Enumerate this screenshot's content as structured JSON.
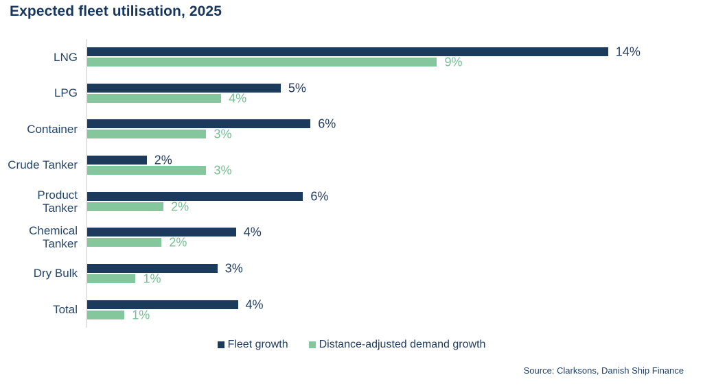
{
  "title": "Expected fleet utilisation, 2025",
  "source": "Source: Clarksons, Danish Ship Finance",
  "colors": {
    "navy": "#1B3A5C",
    "green": "#85C79D",
    "navy_text": "#1F3A5F",
    "green_text": "#74BF92",
    "axis_line": "#E3E3E3",
    "title_text": "#17365D"
  },
  "legend": [
    {
      "label": "Fleet growth",
      "color": "#1B3A5C"
    },
    {
      "label": "Distance-adjusted demand growth",
      "color": "#85C79D"
    }
  ],
  "chart_data": {
    "type": "bar",
    "orientation": "horizontal",
    "title": "Expected fleet utilisation, 2025",
    "categories": [
      "LNG",
      "LPG",
      "Container",
      "Crude Tanker",
      "Product Tanker",
      "Chemical Tanker",
      "Dry Bulk",
      "Total"
    ],
    "category_lines": [
      [
        "LNG"
      ],
      [
        "LPG"
      ],
      [
        "Container"
      ],
      [
        "Crude Tanker"
      ],
      [
        "Product",
        "Tanker"
      ],
      [
        "Chemical",
        "Tanker"
      ],
      [
        "Dry Bulk"
      ],
      [
        "Total"
      ]
    ],
    "series": [
      {
        "name": "Fleet growth",
        "color": "#1B3A5C",
        "values": [
          14,
          5,
          6,
          2,
          6,
          4,
          3,
          4
        ],
        "labels": [
          "14%",
          "5%",
          "6%",
          "2%",
          "6%",
          "4%",
          "3%",
          "4%"
        ]
      },
      {
        "name": "Distance-adjusted demand growth",
        "color": "#85C79D",
        "values": [
          9,
          4,
          3,
          3,
          2,
          2,
          1,
          1
        ],
        "labels": [
          "9%",
          "4%",
          "3%",
          "3%",
          "2%",
          "2%",
          "1%",
          "1%"
        ]
      }
    ],
    "bar_length_estimates_pct": {
      "fleet": [
        14.0,
        5.2,
        6.0,
        1.6,
        5.8,
        4.0,
        3.5,
        4.05
      ],
      "demand": [
        9.4,
        3.6,
        3.2,
        3.2,
        2.05,
        2.0,
        1.3,
        1.0
      ]
    },
    "x_axis": {
      "min": 0,
      "max_visible": 14,
      "ticks_visible": false
    },
    "grid": false,
    "value_labels": true,
    "legend_position": "bottom"
  }
}
